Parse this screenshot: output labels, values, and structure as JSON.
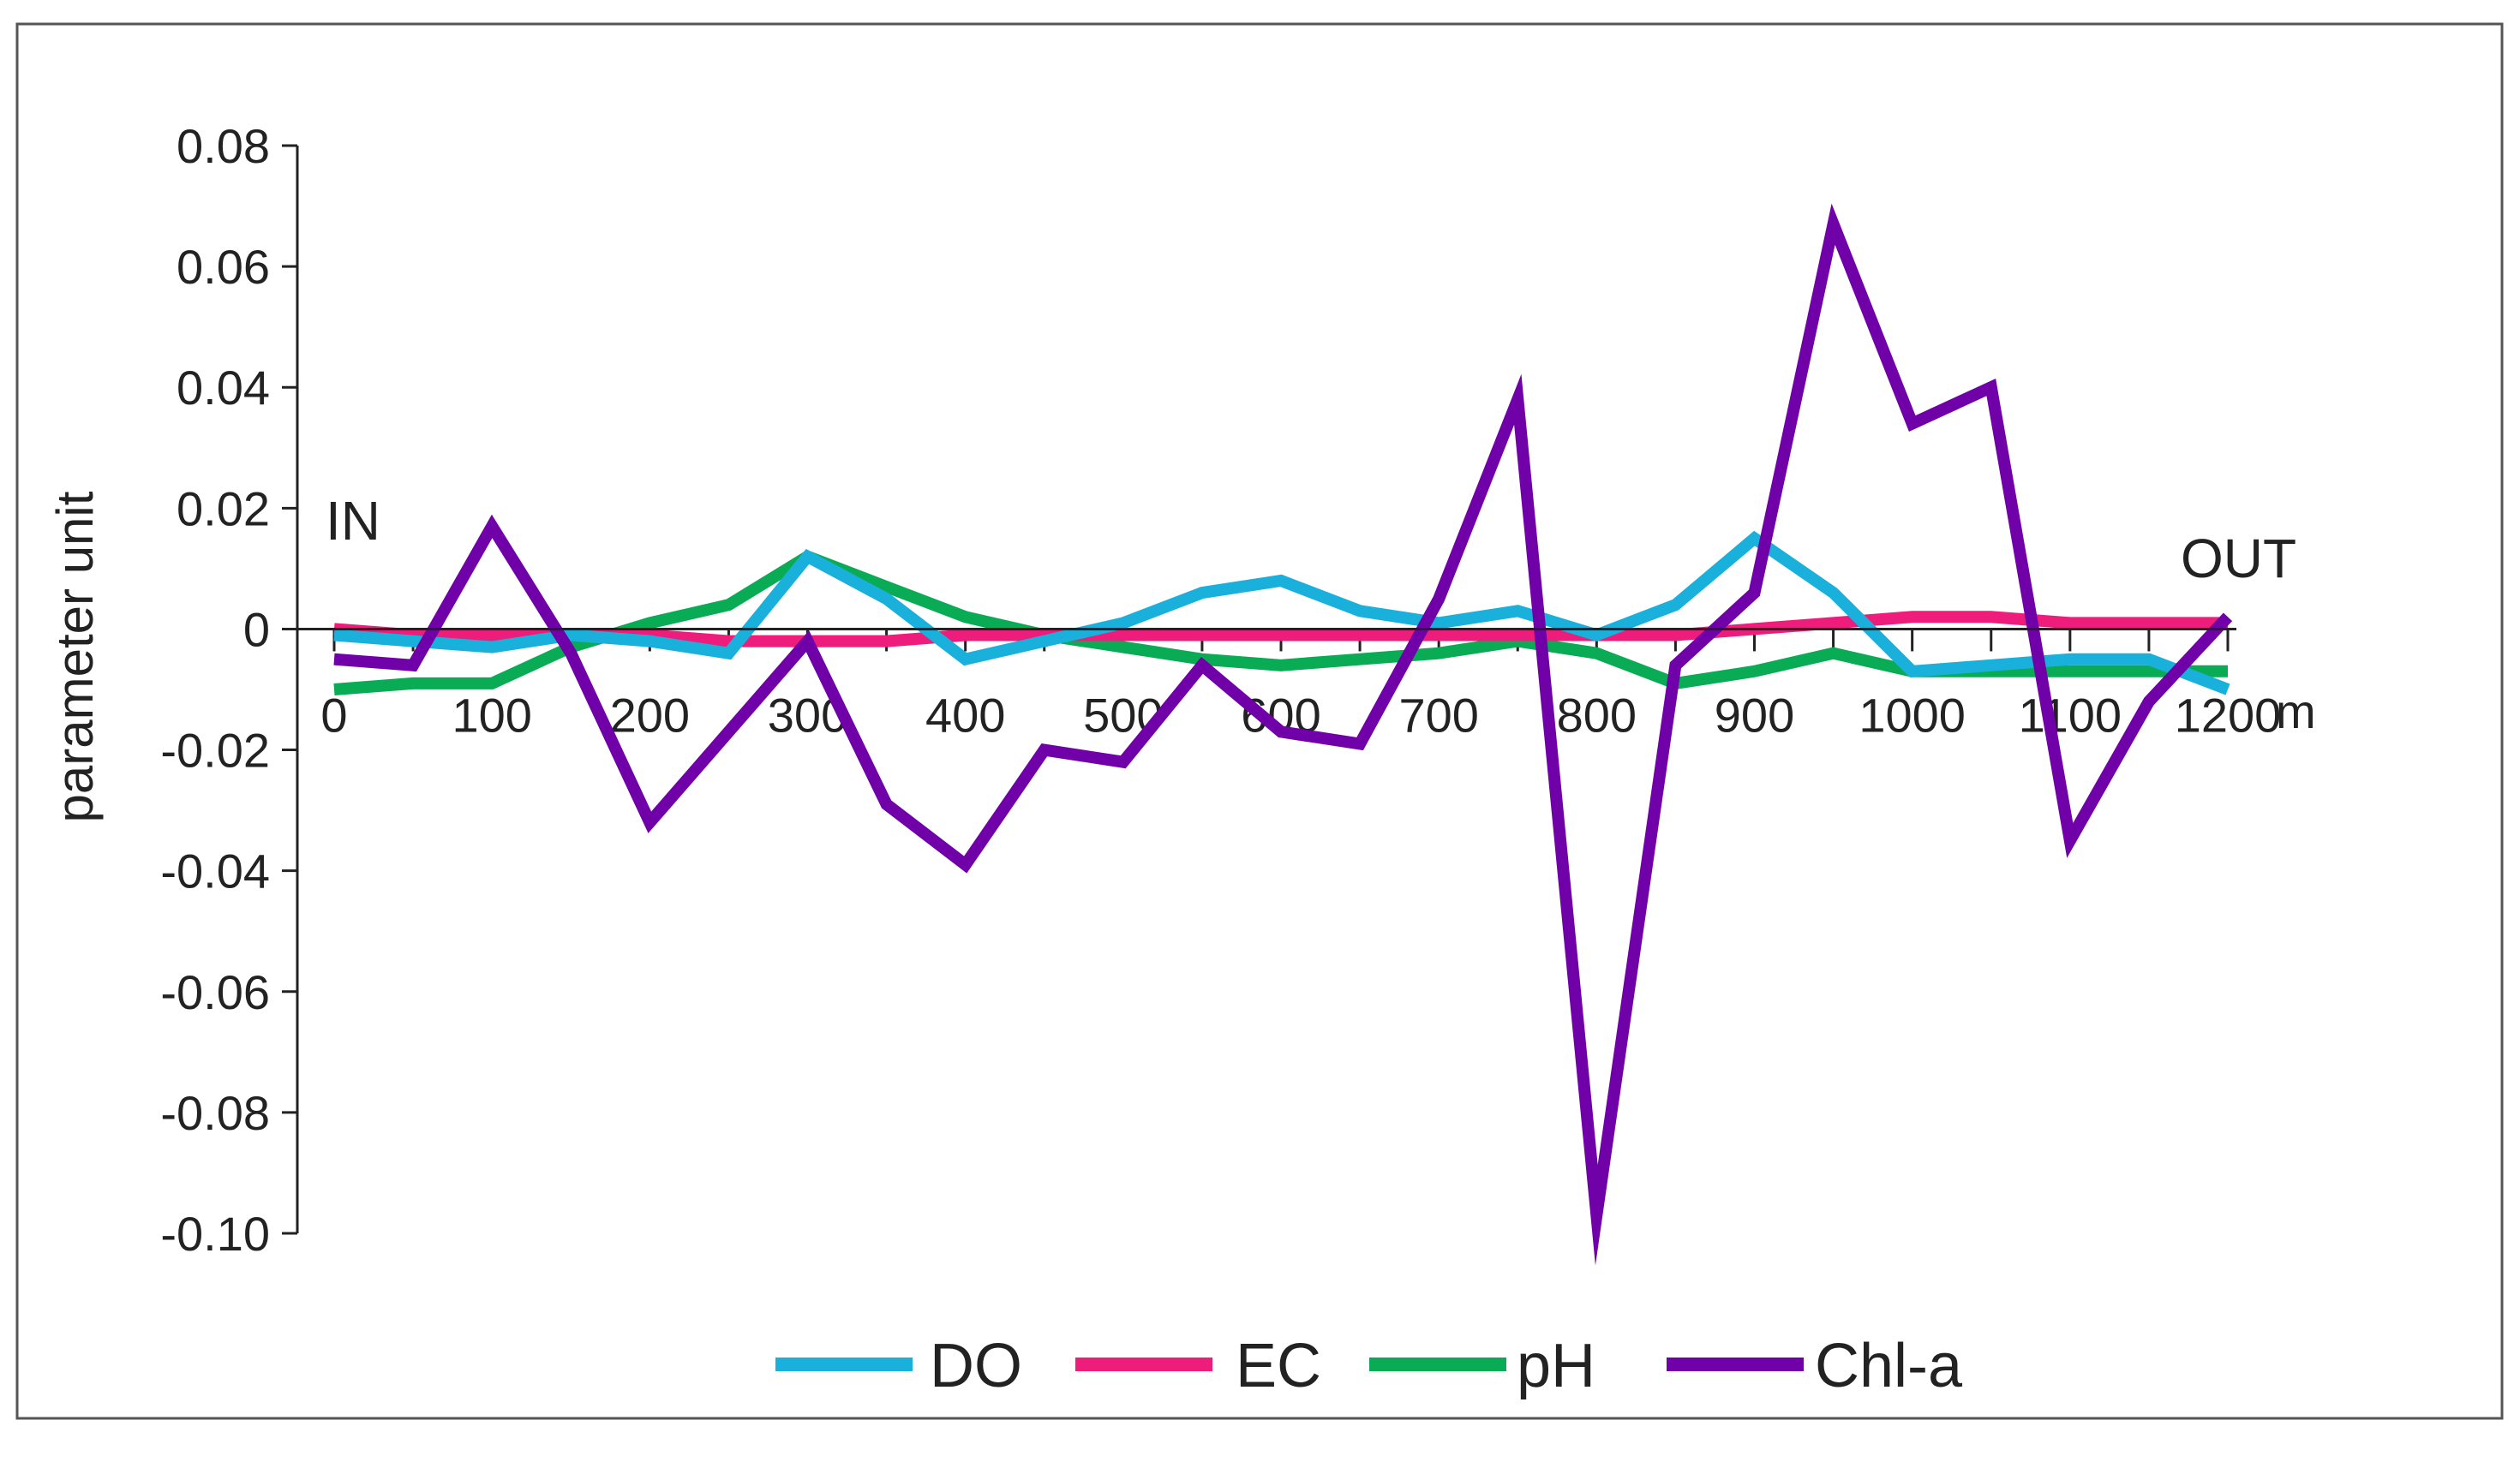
{
  "chart_data": {
    "type": "line",
    "title": "",
    "xlabel": "",
    "x_unit": "m",
    "ylabel": "parameter unit",
    "xlim": [
      0,
      1200
    ],
    "ylim": [
      -0.1,
      0.08
    ],
    "x": [
      0,
      50,
      100,
      150,
      200,
      250,
      300,
      350,
      400,
      450,
      500,
      550,
      600,
      650,
      700,
      750,
      800,
      850,
      900,
      950,
      1000,
      1050,
      1100,
      1150,
      1200
    ],
    "x_ticks": [
      0,
      100,
      200,
      300,
      400,
      500,
      600,
      700,
      800,
      900,
      1000,
      1100,
      1200
    ],
    "x_tick_labels": [
      "0",
      "100",
      "200",
      "300",
      "400",
      "500",
      "600",
      "700",
      "800",
      "900",
      "1000",
      "1100",
      "1200"
    ],
    "x_minor_tick_step": 50,
    "y_ticks": [
      0.08,
      0.06,
      0.04,
      0.02,
      0,
      -0.02,
      -0.04,
      -0.06,
      -0.08,
      -0.1
    ],
    "y_tick_labels": [
      "0.08",
      "0.06",
      "0.04",
      "0.02",
      "0",
      "-0.02",
      "-0.04",
      "-0.06",
      "-0.08",
      "-0.10"
    ],
    "annotations": [
      "IN",
      "OUT"
    ],
    "grid": false,
    "legend_position": "bottom",
    "series": [
      {
        "name": "DO",
        "color": "#1ab0dc",
        "values": [
          -0.001,
          -0.002,
          -0.003,
          -0.001,
          -0.002,
          -0.004,
          0.012,
          0.005,
          -0.005,
          -0.002,
          0.001,
          0.006,
          0.008,
          0.003,
          0.001,
          0.003,
          -0.001,
          0.004,
          0.015,
          0.006,
          -0.007,
          -0.006,
          -0.005,
          -0.005,
          -0.01
        ]
      },
      {
        "name": "EC",
        "color": "#ee1c7a",
        "values": [
          0,
          -0.001,
          -0.001,
          -0.001,
          -0.001,
          -0.002,
          -0.002,
          -0.002,
          -0.001,
          -0.001,
          -0.001,
          -0.001,
          -0.001,
          -0.001,
          -0.001,
          -0.001,
          -0.001,
          -0.001,
          0,
          0.001,
          0.002,
          0.002,
          0.001,
          0.001,
          0.001
        ]
      },
      {
        "name": "pH",
        "color": "#0aab55",
        "values": [
          -0.01,
          -0.009,
          -0.009,
          -0.003,
          0.001,
          0.004,
          0.012,
          0.007,
          0.002,
          -0.001,
          -0.003,
          -0.005,
          -0.006,
          -0.005,
          -0.004,
          -0.002,
          -0.004,
          -0.009,
          -0.007,
          -0.004,
          -0.007,
          -0.007,
          -0.007,
          -0.007,
          -0.007
        ]
      },
      {
        "name": "Chl-a",
        "color": "#7000a8",
        "values": [
          -0.005,
          -0.006,
          0.017,
          -0.004,
          -0.032,
          -0.017,
          -0.002,
          -0.029,
          -0.039,
          -0.02,
          -0.022,
          -0.006,
          -0.017,
          -0.019,
          0.005,
          0.038,
          -0.097,
          -0.006,
          0.006,
          0.067,
          0.034,
          0.04,
          -0.035,
          -0.012,
          0.002
        ]
      }
    ]
  }
}
